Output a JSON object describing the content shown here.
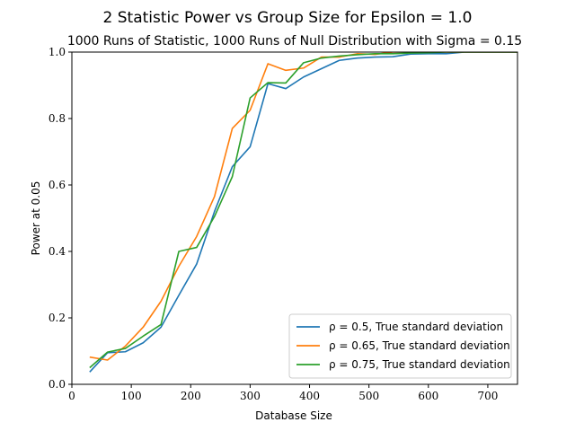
{
  "chart_data": {
    "type": "line",
    "title": "2 Statistic Power vs Group Size for Epsilon = 1.0",
    "subtitle": "1000 Runs of Statistic, 1000 Runs of Null Distribution with Sigma = 0.15",
    "xlabel": "Database Size",
    "ylabel": "Power at 0.05",
    "xlim": [
      0,
      750
    ],
    "ylim": [
      0.0,
      1.0
    ],
    "xticks": [
      0,
      100,
      200,
      300,
      400,
      500,
      600,
      700
    ],
    "yticks": [
      0.0,
      0.2,
      0.4,
      0.6,
      0.8,
      1.0
    ],
    "xtick_labels": [
      "0",
      "100",
      "200",
      "300",
      "400",
      "500",
      "600",
      "700"
    ],
    "ytick_labels": [
      "0.0",
      "0.2",
      "0.4",
      "0.6",
      "0.8",
      "1.0"
    ],
    "grid": false,
    "legend_position": "lower-right",
    "x": [
      30,
      60,
      90,
      120,
      150,
      180,
      210,
      240,
      270,
      300,
      330,
      360,
      390,
      420,
      450,
      480,
      510,
      540,
      570,
      600,
      630,
      660,
      690,
      720,
      750
    ],
    "series": [
      {
        "name": "ρ = 0.5, True standard deviation",
        "color": "#1f77b4",
        "values": [
          0.037,
          0.095,
          0.098,
          0.125,
          0.172,
          0.268,
          0.362,
          0.52,
          0.655,
          0.715,
          0.905,
          0.89,
          0.925,
          0.95,
          0.975,
          0.982,
          0.985,
          0.986,
          0.994,
          0.995,
          0.995,
          1.0,
          1.0,
          1.0,
          1.0
        ]
      },
      {
        "name": "ρ = 0.65, True standard deviation",
        "color": "#ff7f0e",
        "values": [
          0.082,
          0.073,
          0.115,
          0.172,
          0.25,
          0.355,
          0.445,
          0.565,
          0.77,
          0.825,
          0.965,
          0.945,
          0.952,
          0.985,
          0.985,
          0.995,
          0.993,
          1.0,
          1.0,
          1.0,
          1.0,
          1.0,
          1.0,
          1.0,
          1.0
        ]
      },
      {
        "name": "ρ = 0.75, True standard deviation",
        "color": "#2ca02c",
        "values": [
          0.05,
          0.097,
          0.108,
          0.145,
          0.18,
          0.4,
          0.412,
          0.505,
          0.625,
          0.862,
          0.908,
          0.907,
          0.968,
          0.982,
          0.988,
          0.992,
          0.995,
          0.995,
          0.997,
          0.998,
          1.0,
          1.0,
          1.0,
          1.0,
          1.0
        ]
      }
    ]
  }
}
